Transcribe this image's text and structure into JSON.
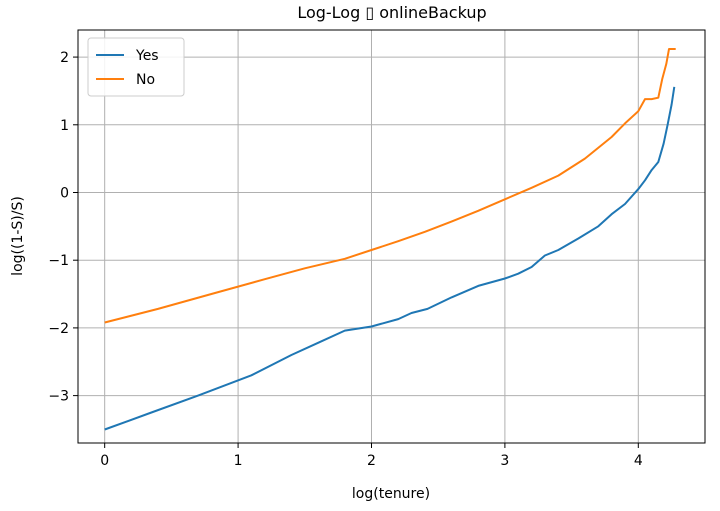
{
  "chart_data": {
    "type": "line",
    "title": "Log-Log ▯ onlineBackup",
    "xlabel": "log(tenure)",
    "ylabel": "log((1-S)/S)",
    "xlim": [
      -0.2,
      4.5
    ],
    "ylim": [
      -3.7,
      2.4
    ],
    "xticks": [
      0,
      1,
      2,
      3,
      4
    ],
    "xtick_labels": [
      "0",
      "1",
      "2",
      "3",
      "4"
    ],
    "yticks": [
      -3,
      -2,
      -1,
      0,
      1,
      2
    ],
    "ytick_labels": [
      "−3",
      "−2",
      "−1",
      "0",
      "1",
      "2"
    ],
    "grid": true,
    "legend_position": "upper-left",
    "series": [
      {
        "name": "Yes",
        "color": "#1f77b4",
        "points": [
          [
            0,
            -3.5
          ],
          [
            0.35,
            -3.25
          ],
          [
            0.7,
            -3.0
          ],
          [
            1.1,
            -2.7
          ],
          [
            1.4,
            -2.4
          ],
          [
            1.6,
            -2.22
          ],
          [
            1.8,
            -2.04
          ],
          [
            2.0,
            -1.98
          ],
          [
            2.2,
            -1.87
          ],
          [
            2.3,
            -1.78
          ],
          [
            2.42,
            -1.72
          ],
          [
            2.6,
            -1.55
          ],
          [
            2.8,
            -1.38
          ],
          [
            3.0,
            -1.27
          ],
          [
            3.1,
            -1.2
          ],
          [
            3.2,
            -1.1
          ],
          [
            3.3,
            -0.93
          ],
          [
            3.4,
            -0.85
          ],
          [
            3.55,
            -0.68
          ],
          [
            3.7,
            -0.5
          ],
          [
            3.8,
            -0.32
          ],
          [
            3.9,
            -0.17
          ],
          [
            4.0,
            0.05
          ],
          [
            4.05,
            0.18
          ],
          [
            4.1,
            0.33
          ],
          [
            4.15,
            0.45
          ],
          [
            4.19,
            0.72
          ],
          [
            4.22,
            1.0
          ],
          [
            4.25,
            1.3
          ],
          [
            4.27,
            1.56
          ]
        ]
      },
      {
        "name": "No",
        "color": "#ff7f0e",
        "points": [
          [
            0,
            -1.92
          ],
          [
            0.4,
            -1.72
          ],
          [
            0.8,
            -1.5
          ],
          [
            1.2,
            -1.28
          ],
          [
            1.5,
            -1.12
          ],
          [
            1.8,
            -0.98
          ],
          [
            2.0,
            -0.85
          ],
          [
            2.2,
            -0.72
          ],
          [
            2.4,
            -0.58
          ],
          [
            2.6,
            -0.43
          ],
          [
            2.8,
            -0.27
          ],
          [
            3.0,
            -0.1
          ],
          [
            3.2,
            0.07
          ],
          [
            3.4,
            0.25
          ],
          [
            3.6,
            0.5
          ],
          [
            3.8,
            0.82
          ],
          [
            3.9,
            1.02
          ],
          [
            4.0,
            1.2
          ],
          [
            4.05,
            1.38
          ],
          [
            4.1,
            1.38
          ],
          [
            4.15,
            1.4
          ],
          [
            4.18,
            1.68
          ],
          [
            4.21,
            1.9
          ],
          [
            4.23,
            2.12
          ],
          [
            4.28,
            2.12
          ]
        ]
      }
    ]
  }
}
